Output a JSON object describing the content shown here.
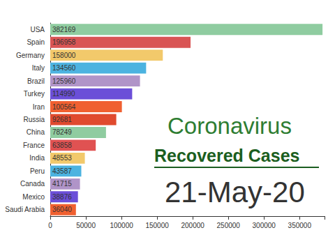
{
  "chart_data": {
    "type": "bar",
    "orientation": "horizontal",
    "title": "Coronavirus",
    "subtitle": "Recovered Cases",
    "annotations": [
      "21-May-20"
    ],
    "categories": [
      "USA",
      "Spain",
      "Germany",
      "Italy",
      "Brazil",
      "Turkey",
      "Iran",
      "Russia",
      "China",
      "France",
      "India",
      "Peru",
      "Canada",
      "Mexico",
      "Saudi Arabia"
    ],
    "values": [
      382169,
      196958,
      158000,
      134560,
      125960,
      114990,
      100564,
      92681,
      78249,
      63858,
      48553,
      43587,
      41715,
      38876,
      36040
    ],
    "colors": [
      "#8fcca0",
      "#d95454",
      "#f2c96b",
      "#4cb3e0",
      "#b094c8",
      "#6b4fd8",
      "#f06030",
      "#e04a2e",
      "#8fcca0",
      "#e05252",
      "#f2c96b",
      "#4cb3e0",
      "#b094c8",
      "#6b4fd8",
      "#f06030"
    ],
    "xlim": [
      0,
      385000
    ],
    "xticks": [
      0,
      50000,
      100000,
      150000,
      200000,
      250000,
      300000,
      350000
    ],
    "data_labels": true,
    "grid": false
  }
}
